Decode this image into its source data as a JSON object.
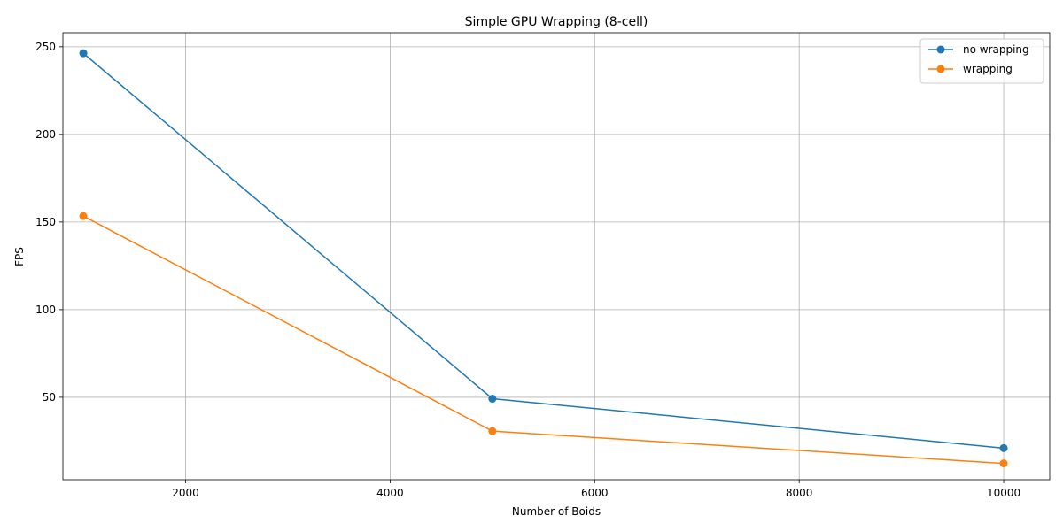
{
  "chart_data": {
    "type": "line",
    "title": "Simple GPU Wrapping (8-cell)",
    "xlabel": "Number of Boids",
    "ylabel": "FPS",
    "xlim": [
      800,
      10450
    ],
    "ylim": [
      3,
      258
    ],
    "xticks": [
      2000,
      4000,
      6000,
      8000,
      10000
    ],
    "yticks": [
      50,
      100,
      150,
      200,
      250
    ],
    "grid": true,
    "legend_position": "top-right",
    "series": [
      {
        "name": "no wrapping",
        "color": "#1f77b4",
        "x": [
          1000,
          5000,
          10000
        ],
        "y": [
          246.3,
          49.2,
          21.0
        ]
      },
      {
        "name": "wrapping",
        "color": "#ff7f0e",
        "x": [
          1000,
          5000,
          10000
        ],
        "y": [
          153.4,
          30.7,
          12.3
        ]
      }
    ]
  }
}
